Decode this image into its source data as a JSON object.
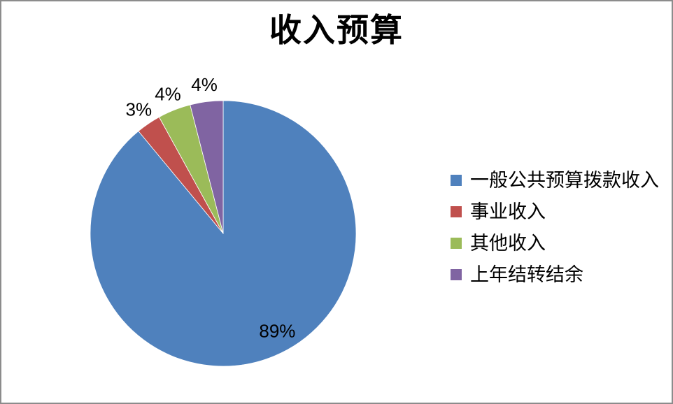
{
  "frame": {
    "border_color": "#8c8c8c",
    "background_color": "#ffffff"
  },
  "chart_data": {
    "type": "pie",
    "title": "收入预算",
    "legend_position": "right",
    "start_angle_deg": 0,
    "direction": "clockwise",
    "categories": [
      "一般公共预算拨款收入",
      "事业收入",
      "其他收入",
      "上年结转结余"
    ],
    "values": [
      89,
      3,
      4,
      4
    ],
    "series": [
      {
        "name": "一般公共预算拨款收入",
        "value": 89,
        "percent_label": "89%",
        "color": "#4f81bd",
        "label_placement": "inside"
      },
      {
        "name": "事业收入",
        "value": 3,
        "percent_label": "3%",
        "color": "#c0504d",
        "label_placement": "outside"
      },
      {
        "name": "其他收入",
        "value": 4,
        "percent_label": "4%",
        "color": "#9bbb59",
        "label_placement": "outside"
      },
      {
        "name": "上年结转结余",
        "value": 4,
        "percent_label": "4%",
        "color": "#8064a2",
        "label_placement": "outside"
      }
    ]
  }
}
